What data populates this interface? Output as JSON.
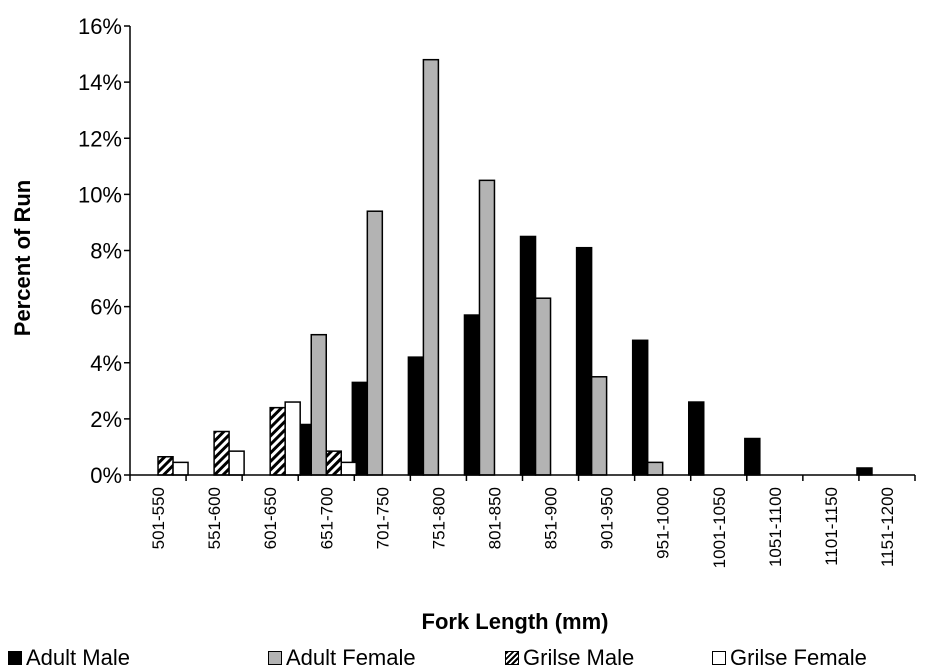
{
  "chart_data": {
    "type": "bar",
    "xlabel": "Fork Length (mm)",
    "ylabel": "Percent of Run",
    "ylim": [
      0,
      16
    ],
    "yticks": [
      "0%",
      "2%",
      "4%",
      "6%",
      "8%",
      "10%",
      "12%",
      "14%",
      "16%"
    ],
    "grid": false,
    "legend_position": "bottom",
    "categories": [
      "501-550",
      "551-600",
      "601-650",
      "651-700",
      "701-750",
      "751-800",
      "801-850",
      "851-900",
      "901-950",
      "951-1000",
      "1001-1050",
      "1051-1100",
      "1101-1150",
      "1151-1200"
    ],
    "series": [
      {
        "name": "Adult Male",
        "fill": "black",
        "values": [
          0,
          0,
          0,
          1.8,
          3.3,
          4.2,
          5.7,
          8.5,
          8.1,
          4.8,
          2.6,
          1.3,
          0,
          0.25
        ]
      },
      {
        "name": "Adult Female",
        "fill": "gray",
        "values": [
          0,
          0,
          0,
          5.0,
          9.4,
          14.8,
          10.5,
          6.3,
          3.5,
          0.45,
          0,
          0,
          0,
          0
        ]
      },
      {
        "name": "Grilse Male",
        "fill": "hatch",
        "values": [
          0.65,
          1.55,
          2.4,
          0.85,
          0,
          0,
          0,
          0,
          0,
          0,
          0,
          0,
          0,
          0
        ]
      },
      {
        "name": "Grilse Female",
        "fill": "white",
        "values": [
          0.45,
          0.85,
          2.6,
          0.45,
          0,
          0,
          0,
          0,
          0,
          0,
          0,
          0,
          0,
          0
        ]
      }
    ]
  },
  "colors": {
    "adult_female": "#b3b3b3",
    "adult_male": "#000000",
    "grilse_female": "#ffffff"
  }
}
